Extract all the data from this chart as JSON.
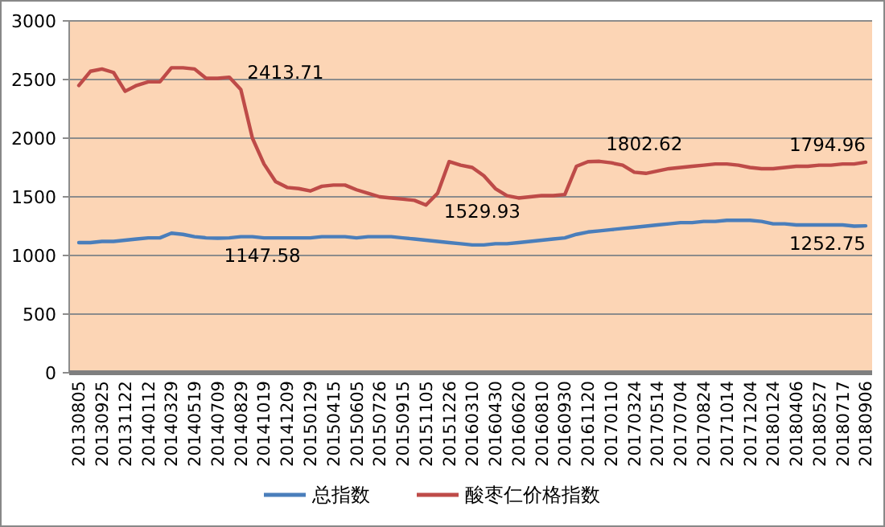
{
  "chart_data": {
    "type": "line",
    "categories": [
      "20130805",
      null,
      "20130925",
      null,
      "20131122",
      null,
      "20140112",
      null,
      "20140329",
      null,
      "20140519",
      null,
      "20140709",
      null,
      "20140829",
      null,
      "20141019",
      null,
      "20141209",
      null,
      "20150129",
      null,
      "20150415",
      null,
      "20150605",
      null,
      "20150726",
      null,
      "20150915",
      null,
      "20151105",
      null,
      "20151226",
      null,
      "20160310",
      null,
      "20160430",
      null,
      "20160620",
      null,
      "20160810",
      null,
      "20160930",
      null,
      "20161120",
      null,
      "20170110",
      null,
      "20170324",
      null,
      "20170514",
      null,
      "20170704",
      null,
      "20170824",
      null,
      "20171014",
      null,
      "20171204",
      null,
      "20180124",
      null,
      "20180406",
      null,
      "20180527",
      null,
      "20180717",
      null,
      "20180906"
    ],
    "series": [
      {
        "name": "总指数",
        "color": "#4a7ebb",
        "values": [
          1110,
          1110,
          1120,
          1120,
          1130,
          1140,
          1150,
          1150,
          1190,
          1180,
          1160,
          1150,
          1147.58,
          1150,
          1160,
          1160,
          1150,
          1150,
          1150,
          1150,
          1150,
          1160,
          1160,
          1160,
          1150,
          1160,
          1160,
          1160,
          1150,
          1140,
          1130,
          1120,
          1110,
          1100,
          1090,
          1090,
          1100,
          1100,
          1110,
          1120,
          1130,
          1140,
          1150,
          1180,
          1200,
          1210,
          1220,
          1230,
          1240,
          1250,
          1260,
          1270,
          1280,
          1280,
          1290,
          1290,
          1300,
          1300,
          1300,
          1290,
          1270,
          1270,
          1260,
          1260,
          1260,
          1260,
          1260,
          1250,
          1252.75
        ],
        "value_labels": [
          null,
          null,
          null,
          null,
          null,
          null,
          null,
          null,
          null,
          null,
          null,
          null,
          "1147.58",
          null,
          null,
          null,
          null,
          null,
          null,
          null,
          null,
          null,
          null,
          null,
          null,
          null,
          null,
          null,
          null,
          null,
          null,
          null,
          null,
          null,
          null,
          null,
          null,
          null,
          null,
          null,
          null,
          null,
          null,
          null,
          null,
          null,
          null,
          null,
          null,
          null,
          null,
          null,
          null,
          null,
          null,
          null,
          null,
          null,
          null,
          null,
          null,
          null,
          null,
          null,
          null,
          null,
          null,
          null,
          "1252.75"
        ]
      },
      {
        "name": "酸枣仁价格指数",
        "color": "#be4b48",
        "values": [
          2450,
          2570,
          2590,
          2560,
          2400,
          2450,
          2480,
          2480,
          2600,
          2600,
          2590,
          2510,
          2510,
          2520,
          2413.71,
          2000,
          1780,
          1630,
          1580,
          1570,
          1550,
          1590,
          1600,
          1600,
          1560,
          1530,
          1500,
          1490,
          1480,
          1470,
          1430,
          1529.93,
          1800,
          1770,
          1750,
          1680,
          1570,
          1510,
          1490,
          1500,
          1510,
          1510,
          1520,
          1760,
          1800,
          1802.62,
          1790,
          1770,
          1710,
          1700,
          1720,
          1740,
          1750,
          1760,
          1770,
          1780,
          1780,
          1770,
          1750,
          1740,
          1740,
          1750,
          1760,
          1760,
          1770,
          1770,
          1780,
          1780,
          1794.96
        ],
        "value_labels": [
          null,
          null,
          null,
          null,
          null,
          null,
          null,
          null,
          null,
          null,
          null,
          null,
          null,
          null,
          "2413.71",
          null,
          null,
          null,
          null,
          null,
          null,
          null,
          null,
          null,
          null,
          null,
          null,
          null,
          null,
          null,
          null,
          "1529.93",
          null,
          null,
          null,
          null,
          null,
          null,
          null,
          null,
          null,
          null,
          null,
          null,
          null,
          "1802.62",
          null,
          null,
          null,
          null,
          null,
          null,
          null,
          null,
          null,
          null,
          null,
          null,
          null,
          null,
          null,
          null,
          null,
          null,
          null,
          null,
          null,
          null,
          "1794.96"
        ]
      }
    ],
    "ylim": [
      0,
      3000
    ],
    "yticks": [
      0,
      500,
      1000,
      1500,
      2000,
      2500,
      3000
    ],
    "grid": "y",
    "legend": "bottom",
    "marker": "none",
    "line_style": "solid"
  }
}
